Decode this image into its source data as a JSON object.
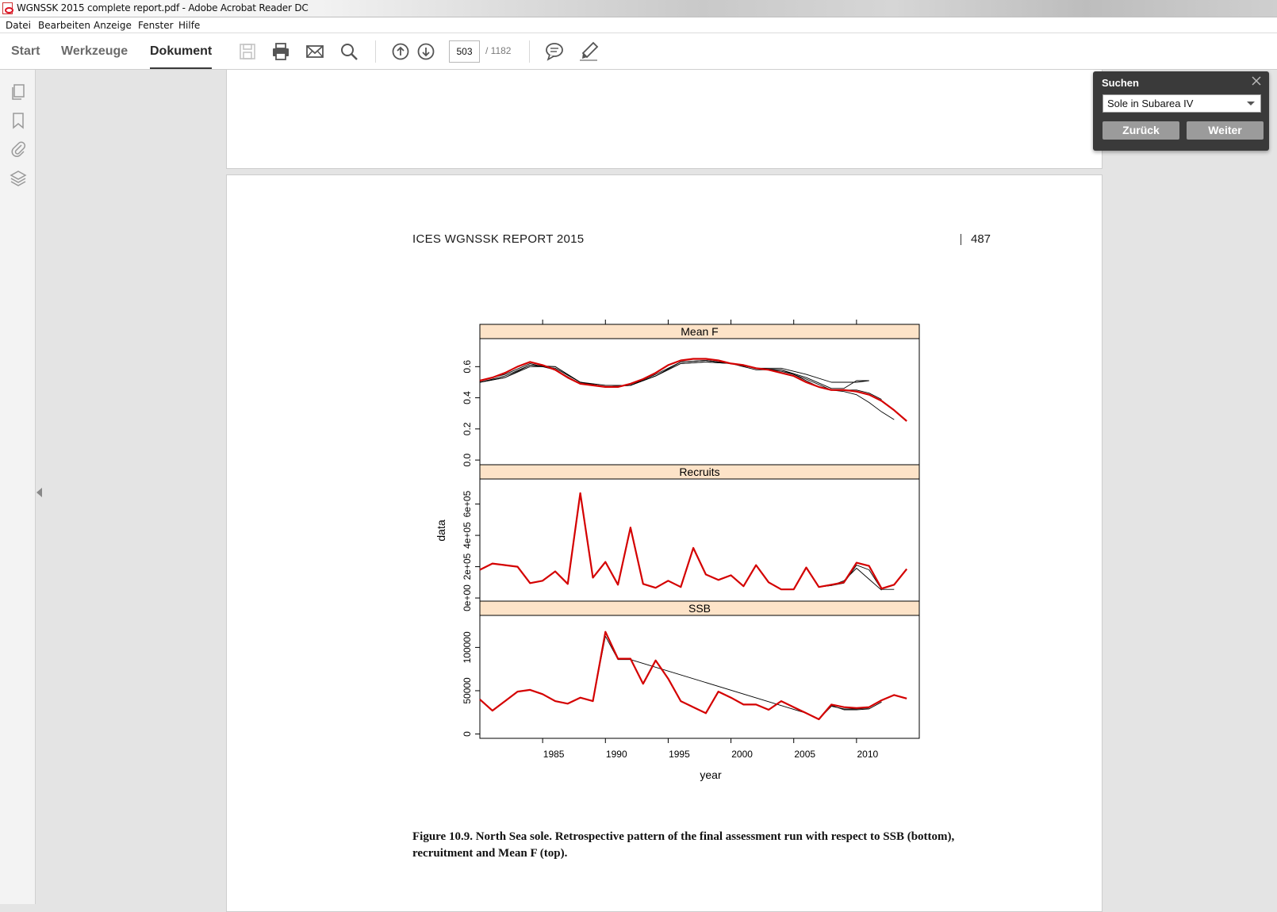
{
  "window": {
    "title": "WGNSSK 2015 complete report.pdf - Adobe Acrobat Reader DC"
  },
  "menu": [
    "Datei",
    "Bearbeiten",
    "Anzeige",
    "Fenster",
    "Hilfe"
  ],
  "tabs": [
    {
      "label": "Start",
      "active": false
    },
    {
      "label": "Werkzeuge",
      "active": false
    },
    {
      "label": "Dokument",
      "active": true
    }
  ],
  "toolbar": {
    "icons": [
      "save-icon",
      "print-icon",
      "email-icon",
      "search-icon",
      "page-up-icon",
      "page-down-icon",
      "comment-icon",
      "highlight-pen-icon"
    ],
    "page_current": "503",
    "page_total": "/ 1182"
  },
  "rail": {
    "icons": [
      "pages-icon",
      "bookmark-icon",
      "attachment-icon",
      "layers-icon"
    ]
  },
  "search_panel": {
    "title": "Suchen",
    "query": "Sole in Subarea IV",
    "back_label": "Zurück",
    "next_label": "Weiter"
  },
  "page": {
    "running_head": "ICES WGNSSK REPORT 2015",
    "number": "487",
    "caption": "Figure 10.9. North Sea sole. Retrospective pattern of the final assessment run with respect to SSB (bottom), recruitment and Mean F (top)."
  },
  "chart_data": {
    "type": "line",
    "xlabel": "year",
    "ylabel": "data",
    "x_ticks": [
      1985,
      1990,
      1995,
      2000,
      2005,
      2010
    ],
    "xlim": [
      1980,
      2015
    ],
    "colors": {
      "final": "#d40000",
      "retro": "#000000",
      "strip": "#fde3c8"
    },
    "panels": [
      {
        "name": "Mean F",
        "ylim": [
          -0.03,
          0.78
        ],
        "y_ticks": [
          0.0,
          0.2,
          0.4,
          0.6
        ],
        "y_tick_labels": [
          "0.0",
          "0.2",
          "0.4",
          "0.6"
        ],
        "series": [
          {
            "x": [
              1980,
              1981,
              1982,
              1983,
              1984,
              1985,
              1986,
              1987,
              1988,
              1989,
              1990,
              1991,
              1992,
              1993,
              1994,
              1995,
              1996,
              1997,
              1998,
              1999,
              2000,
              2001,
              2002,
              2003,
              2004,
              2005,
              2006,
              2007,
              2008,
              2009,
              2010,
              2011,
              2012,
              2013,
              2014
            ],
            "y": [
              0.51,
              0.53,
              0.56,
              0.6,
              0.63,
              0.61,
              0.58,
              0.53,
              0.49,
              0.48,
              0.47,
              0.47,
              0.49,
              0.52,
              0.56,
              0.61,
              0.64,
              0.65,
              0.65,
              0.64,
              0.62,
              0.61,
              0.59,
              0.58,
              0.56,
              0.54,
              0.5,
              0.47,
              0.45,
              0.45,
              0.44,
              0.42,
              0.38,
              0.32,
              0.25
            ]
          },
          {
            "x": [
              1980,
              1982,
              1984,
              1986,
              1988,
              1990,
              1992,
              1994,
              1996,
              1998,
              2000,
              2002,
              2004,
              2005,
              2006,
              2007,
              2008,
              2009,
              2010,
              2011,
              2012,
              2013
            ],
            "y": [
              0.51,
              0.55,
              0.62,
              0.58,
              0.49,
              0.47,
              0.48,
              0.55,
              0.63,
              0.64,
              0.62,
              0.59,
              0.57,
              0.55,
              0.51,
              0.47,
              0.45,
              0.44,
              0.42,
              0.37,
              0.31,
              0.26
            ]
          },
          {
            "x": [
              1980,
              1982,
              1984,
              1986,
              1988,
              1990,
              1992,
              1994,
              1996,
              1998,
              2000,
              2002,
              2004,
              2006,
              2008,
              2009,
              2010,
              2011,
              2012
            ],
            "y": [
              0.5,
              0.54,
              0.61,
              0.59,
              0.5,
              0.47,
              0.48,
              0.54,
              0.63,
              0.64,
              0.62,
              0.59,
              0.58,
              0.52,
              0.45,
              0.45,
              0.45,
              0.43,
              0.39
            ]
          },
          {
            "x": [
              1980,
              1982,
              1984,
              1986,
              1988,
              1990,
              1992,
              1994,
              1996,
              1998,
              2000,
              2002,
              2004,
              2006,
              2008,
              2009,
              2010,
              2011
            ],
            "y": [
              0.5,
              0.53,
              0.61,
              0.6,
              0.5,
              0.48,
              0.48,
              0.54,
              0.62,
              0.63,
              0.62,
              0.58,
              0.58,
              0.53,
              0.46,
              0.46,
              0.51,
              0.51
            ]
          },
          {
            "x": [
              1980,
              1982,
              1984,
              1986,
              1988,
              1990,
              1992,
              1994,
              1996,
              1998,
              2000,
              2002,
              2004,
              2006,
              2008,
              2009,
              2010,
              2011
            ],
            "y": [
              0.5,
              0.53,
              0.6,
              0.6,
              0.5,
              0.47,
              0.48,
              0.54,
              0.62,
              0.63,
              0.62,
              0.59,
              0.59,
              0.55,
              0.5,
              0.5,
              0.5,
              0.51
            ]
          }
        ]
      },
      {
        "name": "Recruits",
        "ylim": [
          -20000,
          760000
        ],
        "y_ticks": [
          0,
          200000,
          400000,
          600000
        ],
        "y_tick_labels": [
          "0e+00",
          "2e+05",
          "4e+05",
          "6e+05"
        ],
        "series": [
          {
            "x": [
              1980,
              1981,
              1982,
              1983,
              1984,
              1985,
              1986,
              1987,
              1988,
              1989,
              1990,
              1991,
              1992,
              1993,
              1994,
              1995,
              1996,
              1997,
              1998,
              1999,
              2000,
              2001,
              2002,
              2003,
              2004,
              2005,
              2006,
              2007,
              2008,
              2009,
              2010,
              2011,
              2012,
              2013,
              2014
            ],
            "y": [
              180000,
              220000,
              210000,
              200000,
              95000,
              110000,
              170000,
              90000,
              670000,
              130000,
              230000,
              85000,
              450000,
              90000,
              65000,
              110000,
              70000,
              320000,
              150000,
              115000,
              145000,
              75000,
              210000,
              100000,
              55000,
              55000,
              195000,
              70000,
              85000,
              100000,
              225000,
              205000,
              60000,
              85000,
              185000
            ]
          },
          {
            "x": [
              2005,
              2006,
              2007,
              2008,
              2009,
              2010,
              2011,
              2012,
              2013
            ],
            "y": [
              55000,
              190000,
              70000,
              80000,
              95000,
              210000,
              180000,
              55000,
              55000
            ]
          },
          {
            "x": [
              2005,
              2006,
              2007,
              2008,
              2009,
              2010,
              2011,
              2012
            ],
            "y": [
              55000,
              190000,
              70000,
              80000,
              110000,
              190000,
              120000,
              50000
            ]
          }
        ]
      },
      {
        "name": "SSB",
        "ylim": [
          -5000,
          137000
        ],
        "y_ticks": [
          0,
          50000,
          100000
        ],
        "y_tick_labels": [
          "0",
          "50000",
          "100000"
        ],
        "series": [
          {
            "x": [
              1980,
              1981,
              1982,
              1983,
              1984,
              1985,
              1986,
              1987,
              1988,
              1989,
              1990,
              1991,
              1992,
              1993,
              1994,
              1995,
              1996,
              1997,
              1998,
              1999,
              2000,
              2001,
              2002,
              2003,
              2004,
              2005,
              2006,
              2007,
              2008,
              2009,
              2010,
              2011,
              2012,
              2013,
              2014
            ],
            "y": [
              40000,
              27000,
              38000,
              49000,
              51000,
              46000,
              38000,
              35000,
              42000,
              38000,
              118000,
              87000,
              87000,
              58000,
              85000,
              64000,
              38000,
              31000,
              24000,
              49000,
              42000,
              34000,
              34000,
              28000,
              38000,
              31000,
              24000,
              17000,
              34000,
              31000,
              30000,
              31000,
              39000,
              45000,
              41000
            ]
          },
          {
            "x": [
              2006,
              2007,
              2008,
              2009,
              2010,
              2011,
              2012
            ],
            "y": [
              24000,
              17000,
              33000,
              28000,
              28000,
              29000,
              37000
            ]
          },
          {
            "x": [
              1989,
              1990,
              1991,
              1992,
              2006,
              2007,
              2008,
              2009,
              2010,
              2011
            ],
            "y": [
              38000,
              113000,
              86000,
              86000,
              24000,
              17000,
              32000,
              29000,
              29000,
              30000
            ]
          }
        ]
      }
    ]
  }
}
